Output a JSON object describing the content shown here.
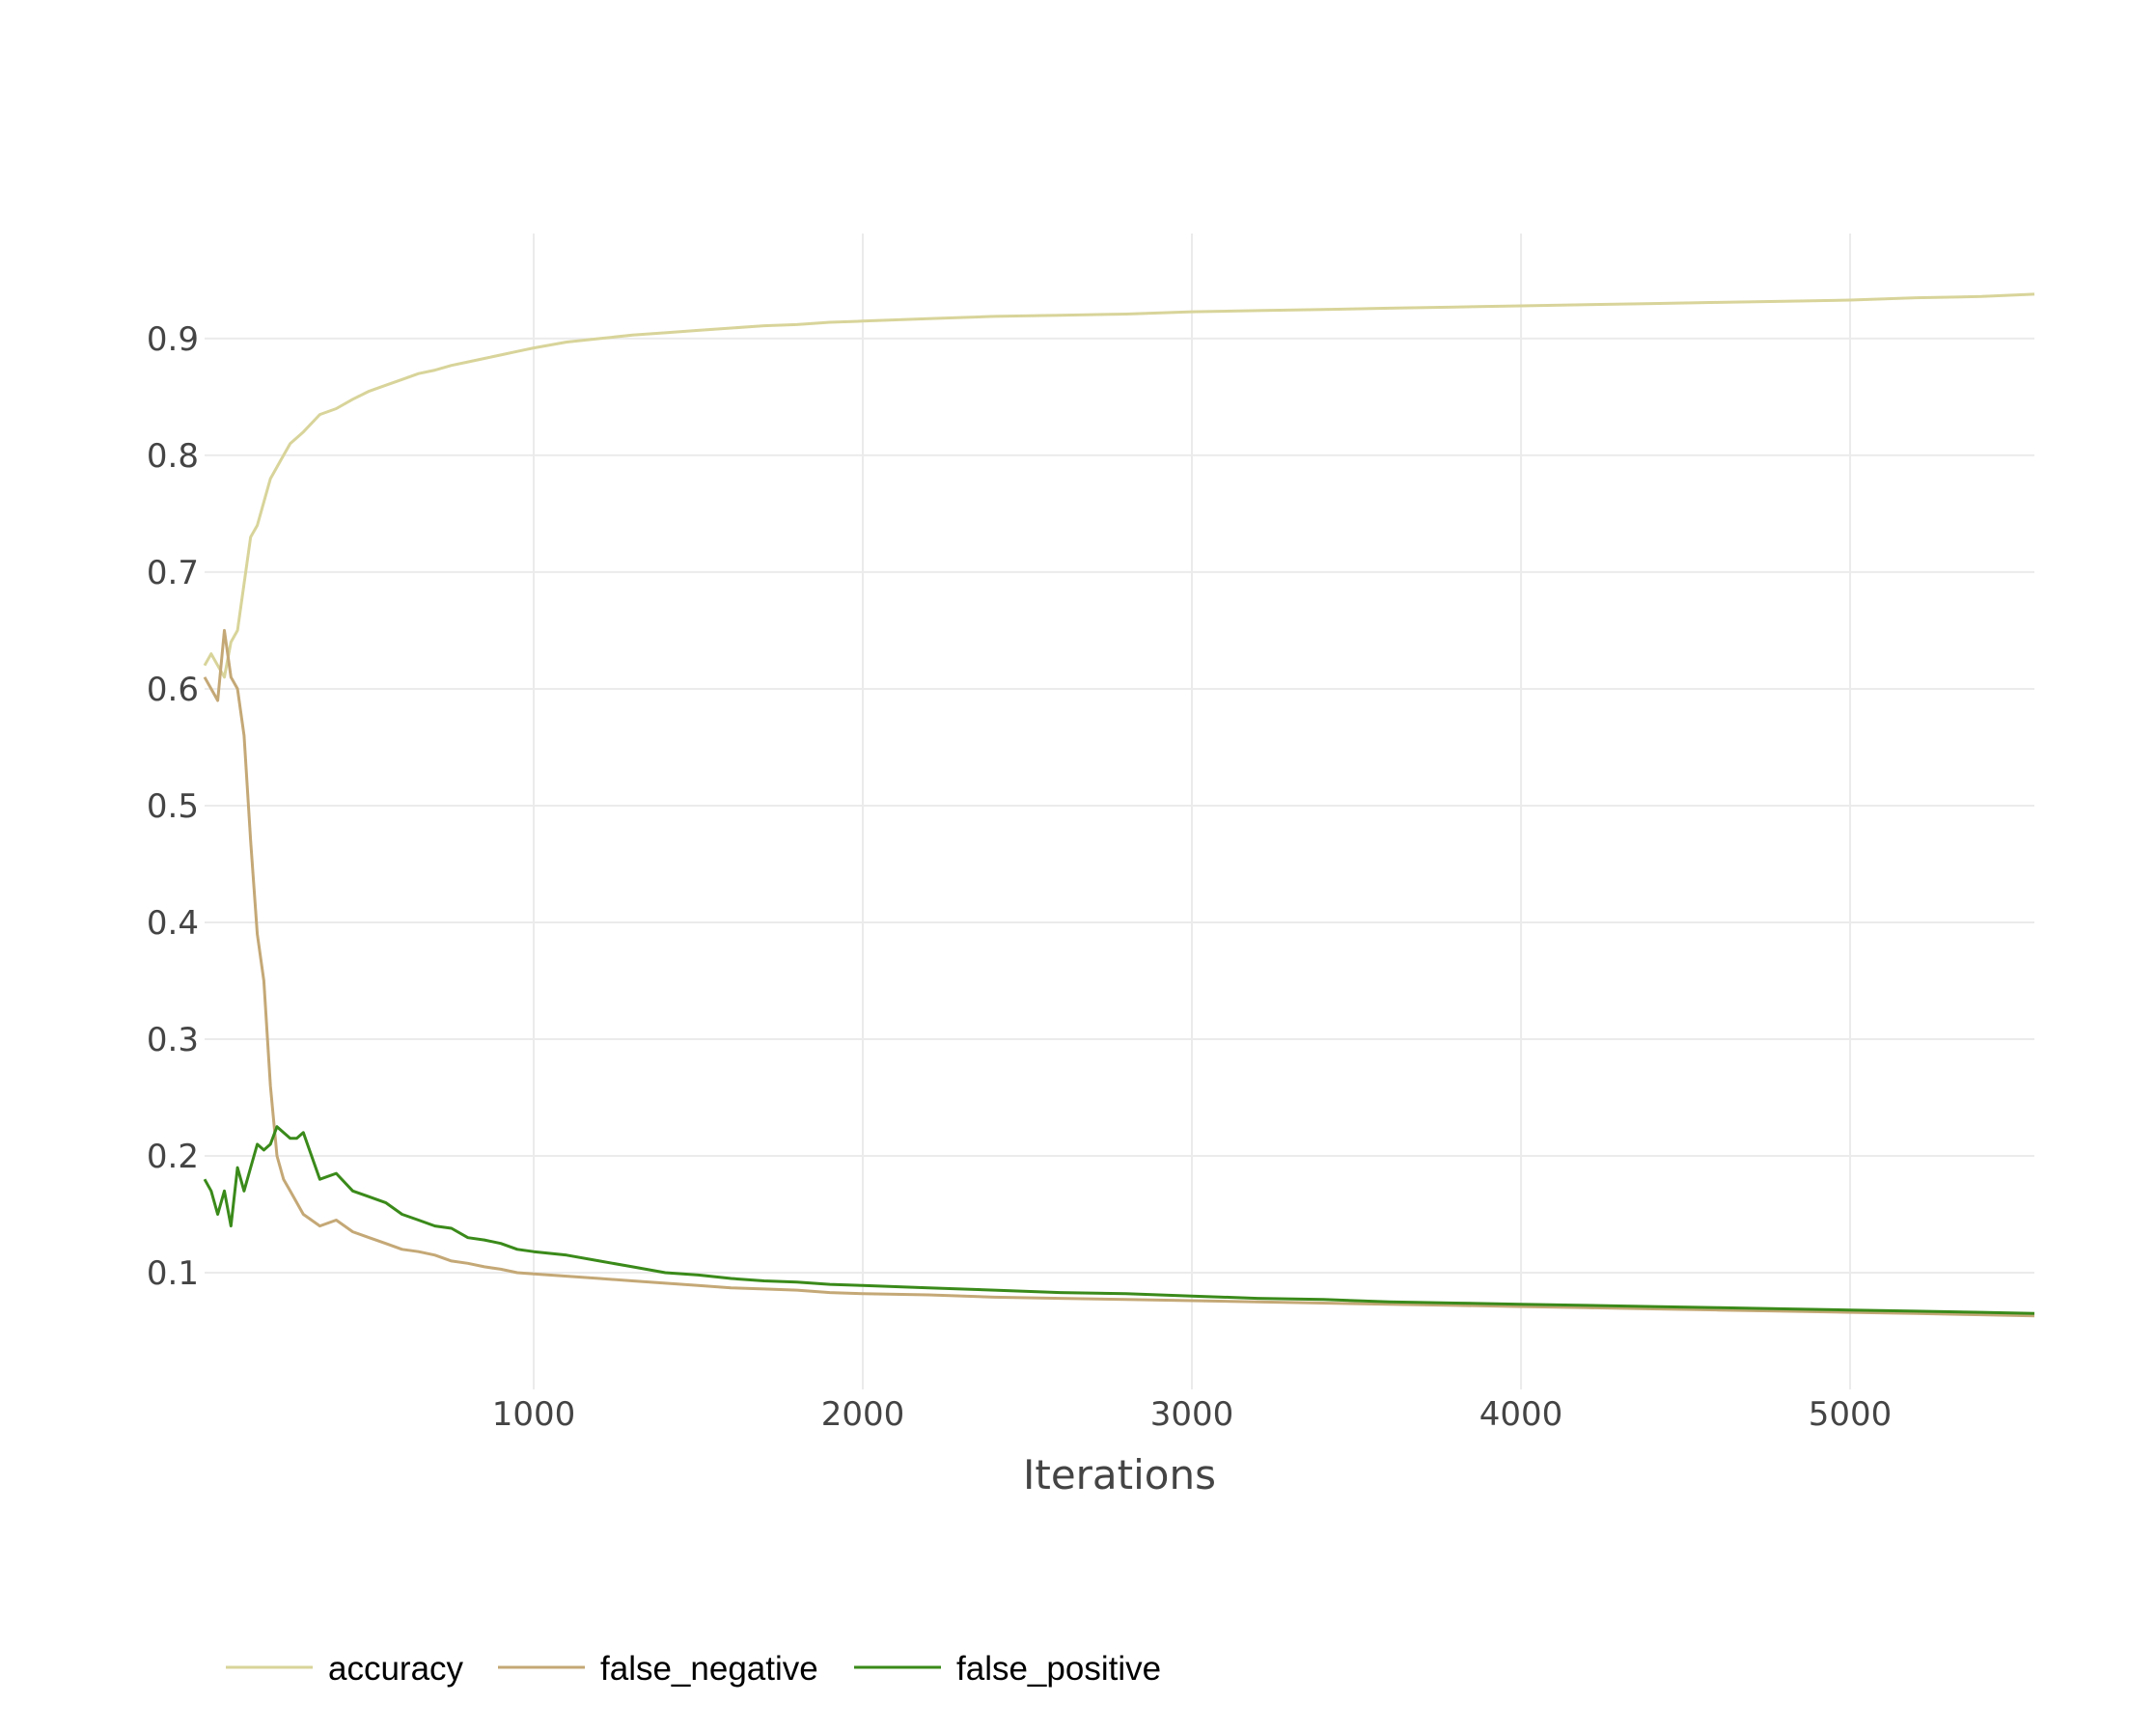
{
  "chart_data": {
    "type": "line",
    "title": "",
    "xlabel": "Iterations",
    "ylabel": "",
    "xlim": [
      0,
      5560
    ],
    "ylim": [
      0,
      0.99
    ],
    "x_ticks": [
      1000,
      2000,
      3000,
      4000,
      5000
    ],
    "y_ticks": [
      0.1,
      0.2,
      0.3,
      0.4,
      0.5,
      0.6,
      0.7,
      0.8,
      0.9
    ],
    "x_tick_labels": [
      "1000",
      "2000",
      "3000",
      "4000",
      "5000"
    ],
    "y_tick_labels": [
      "0.1",
      "0.2",
      "0.3",
      "0.4",
      "0.5",
      "0.6",
      "0.7",
      "0.8",
      "0.9"
    ],
    "grid": true,
    "legend_position": "bottom-left",
    "x": [
      0,
      20,
      40,
      60,
      80,
      100,
      120,
      140,
      160,
      180,
      200,
      220,
      240,
      260,
      280,
      300,
      350,
      400,
      450,
      500,
      550,
      600,
      650,
      700,
      750,
      800,
      850,
      900,
      950,
      1000,
      1100,
      1200,
      1300,
      1400,
      1500,
      1600,
      1700,
      1800,
      1900,
      2000,
      2200,
      2400,
      2600,
      2800,
      3000,
      3200,
      3400,
      3600,
      3800,
      4000,
      4200,
      4400,
      4600,
      4800,
      5000,
      5200,
      5400,
      5560
    ],
    "series": [
      {
        "name": "accuracy",
        "color": "#d8d49a",
        "values": [
          0.62,
          0.63,
          0.62,
          0.61,
          0.64,
          0.65,
          0.69,
          0.73,
          0.74,
          0.76,
          0.78,
          0.79,
          0.8,
          0.81,
          0.815,
          0.82,
          0.835,
          0.84,
          0.848,
          0.855,
          0.86,
          0.865,
          0.87,
          0.873,
          0.877,
          0.88,
          0.883,
          0.886,
          0.889,
          0.892,
          0.897,
          0.9,
          0.903,
          0.905,
          0.907,
          0.909,
          0.911,
          0.912,
          0.914,
          0.915,
          0.917,
          0.919,
          0.92,
          0.921,
          0.923,
          0.924,
          0.925,
          0.926,
          0.927,
          0.928,
          0.929,
          0.93,
          0.931,
          0.932,
          0.933,
          0.935,
          0.936,
          0.938
        ]
      },
      {
        "name": "false_negative",
        "color": "#c4a876",
        "values": [
          0.61,
          0.6,
          0.59,
          0.65,
          0.61,
          0.6,
          0.56,
          0.47,
          0.39,
          0.35,
          0.26,
          0.2,
          0.18,
          0.17,
          0.16,
          0.15,
          0.14,
          0.145,
          0.135,
          0.13,
          0.125,
          0.12,
          0.118,
          0.115,
          0.11,
          0.108,
          0.105,
          0.103,
          0.1,
          0.099,
          0.097,
          0.095,
          0.093,
          0.091,
          0.089,
          0.087,
          0.086,
          0.085,
          0.083,
          0.082,
          0.081,
          0.079,
          0.078,
          0.077,
          0.076,
          0.075,
          0.074,
          0.073,
          0.072,
          0.071,
          0.07,
          0.069,
          0.068,
          0.067,
          0.066,
          0.065,
          0.064,
          0.063
        ]
      },
      {
        "name": "false_positive",
        "color": "#3a8a1a",
        "values": [
          0.18,
          0.17,
          0.15,
          0.17,
          0.14,
          0.19,
          0.17,
          0.19,
          0.21,
          0.205,
          0.21,
          0.225,
          0.22,
          0.215,
          0.215,
          0.22,
          0.18,
          0.185,
          0.17,
          0.165,
          0.16,
          0.15,
          0.145,
          0.14,
          0.138,
          0.13,
          0.128,
          0.125,
          0.12,
          0.118,
          0.115,
          0.11,
          0.105,
          0.1,
          0.098,
          0.095,
          0.093,
          0.092,
          0.09,
          0.089,
          0.087,
          0.085,
          0.083,
          0.082,
          0.08,
          0.078,
          0.077,
          0.075,
          0.074,
          0.073,
          0.072,
          0.071,
          0.07,
          0.069,
          0.068,
          0.067,
          0.066,
          0.065
        ]
      }
    ]
  }
}
